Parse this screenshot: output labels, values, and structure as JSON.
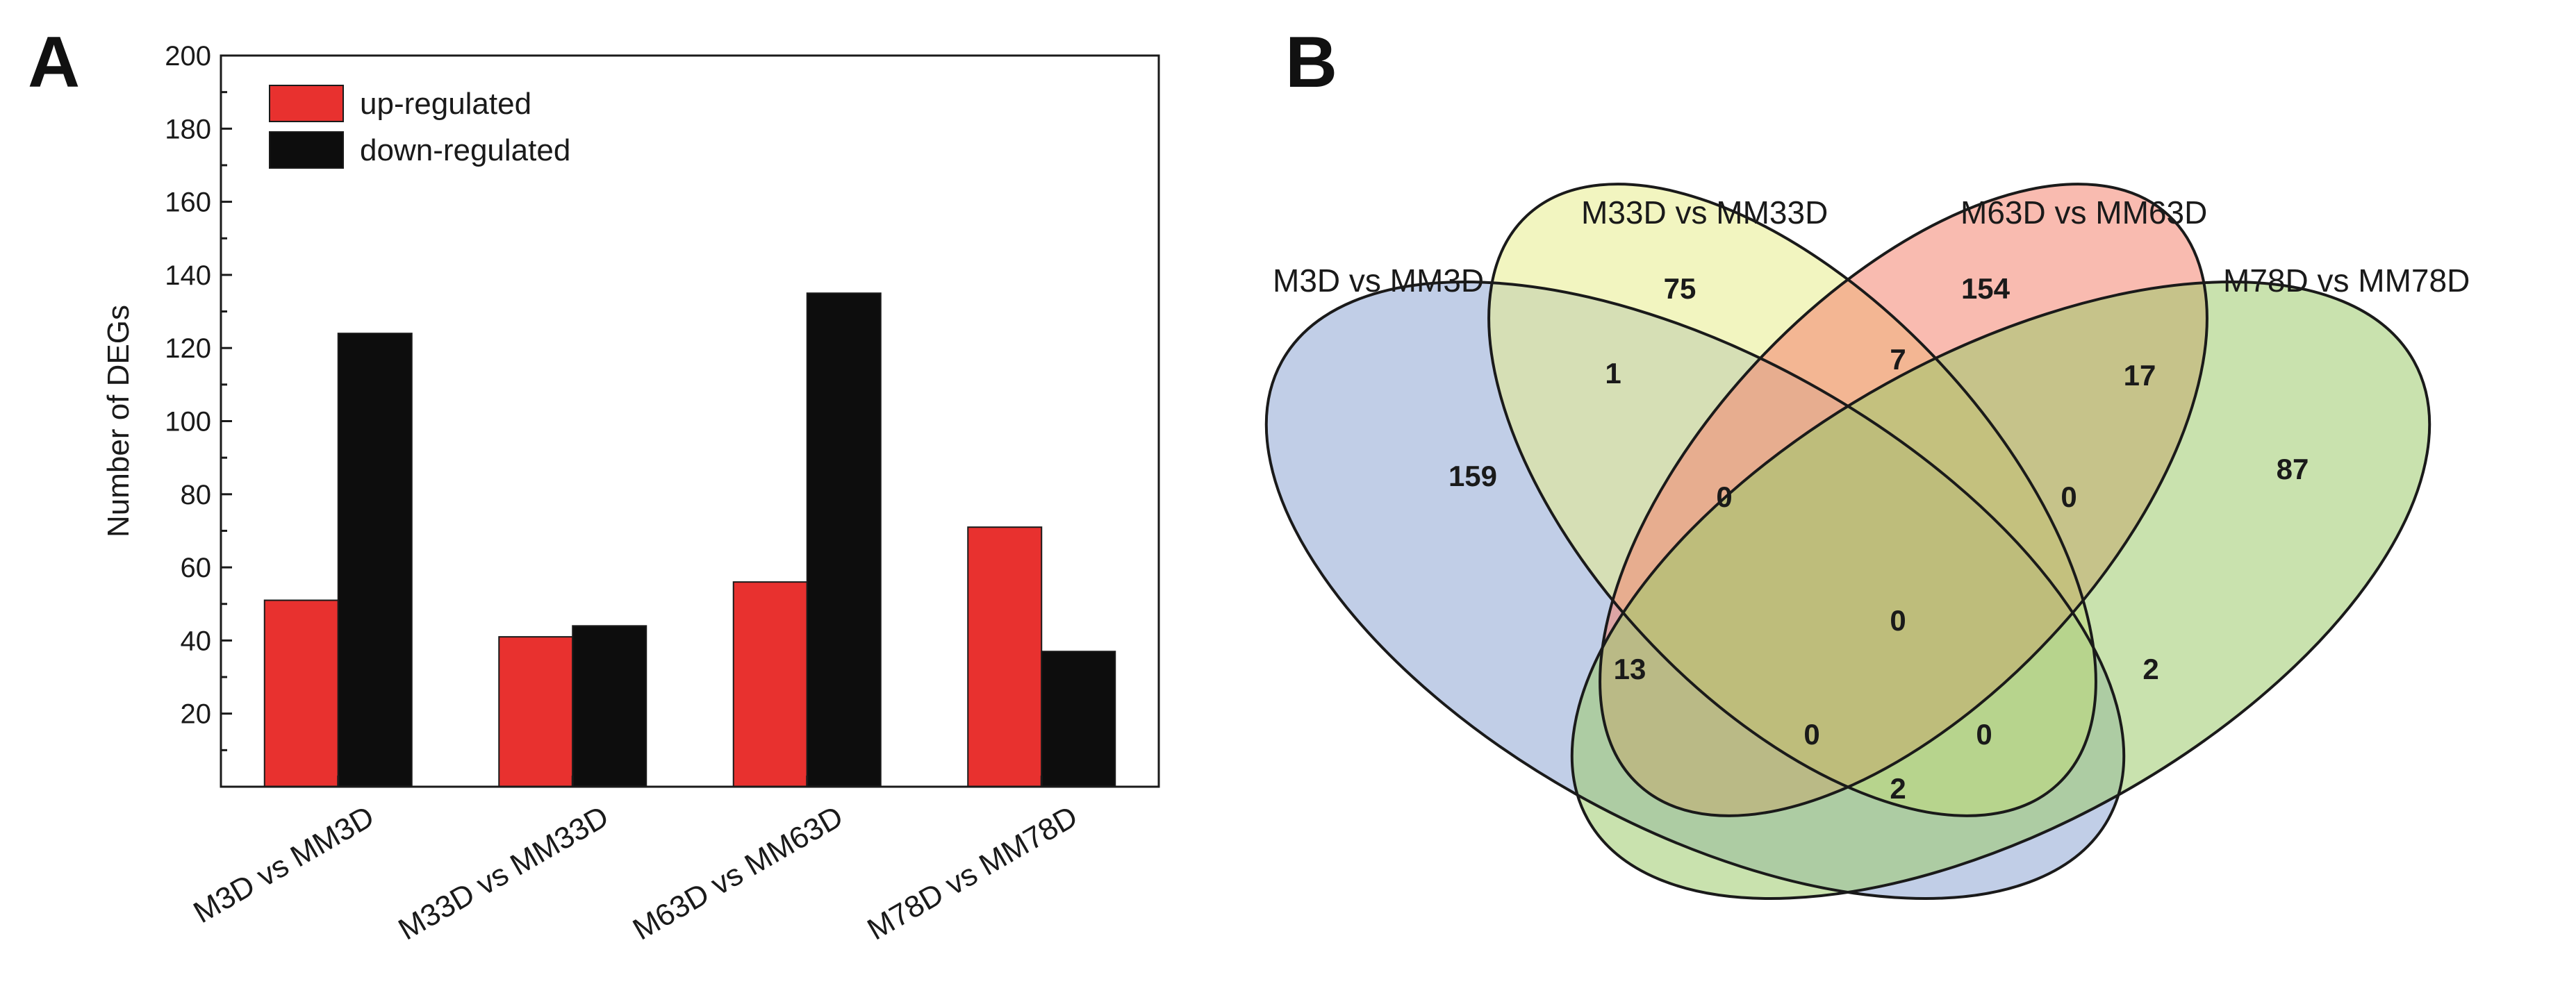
{
  "panels": {
    "a": {
      "label": "A"
    },
    "b": {
      "label": "B"
    }
  },
  "colors": {
    "up": "#e8312f",
    "down": "#0d0d0d",
    "venn": [
      "#8ea5d4",
      "#e8ec8c",
      "#f4836f",
      "#9cca6c"
    ]
  },
  "chart_data": [
    {
      "type": "bar",
      "title": "",
      "xlabel": "",
      "ylabel": "Number of DEGs",
      "ylim": [
        0,
        200
      ],
      "yticks": [
        "20",
        "40",
        "60",
        "80",
        "100",
        "120",
        "140",
        "160",
        "180",
        "200"
      ],
      "legend_position": "top-left",
      "categories": [
        "M3D vs MM3D",
        "M33D vs MM33D",
        "M63D vs MM63D",
        "M78D vs MM78D"
      ],
      "series": [
        {
          "name": "up-regulated",
          "values": [
            51,
            41,
            56,
            71
          ]
        },
        {
          "name": "down-regulated",
          "values": [
            124,
            44,
            135,
            37
          ]
        }
      ]
    },
    {
      "type": "venn",
      "sets": [
        "M3D vs MM3D",
        "M33D vs MM33D",
        "M63D vs MM63D",
        "M78D vs MM78D"
      ],
      "regions": [
        {
          "sets": [
            "M3D vs MM3D"
          ],
          "count": "159"
        },
        {
          "sets": [
            "M33D vs MM33D"
          ],
          "count": "75"
        },
        {
          "sets": [
            "M63D vs MM63D"
          ],
          "count": "154"
        },
        {
          "sets": [
            "M78D vs MM78D"
          ],
          "count": "87"
        },
        {
          "sets": [
            "M3D vs MM3D",
            "M33D vs MM33D"
          ],
          "count": "1"
        },
        {
          "sets": [
            "M33D vs MM33D",
            "M63D vs MM63D"
          ],
          "count": "7"
        },
        {
          "sets": [
            "M63D vs MM63D",
            "M78D vs MM78D"
          ],
          "count": "17"
        },
        {
          "sets": [
            "M3D vs MM3D",
            "M33D vs MM33D",
            "M63D vs MM63D"
          ],
          "count": "0"
        },
        {
          "sets": [
            "M33D vs MM33D",
            "M63D vs MM63D",
            "M78D vs MM78D"
          ],
          "count": "0"
        },
        {
          "sets": [
            "M3D vs MM3D",
            "M33D vs MM33D",
            "M63D vs MM63D",
            "M78D vs MM78D"
          ],
          "count": "0"
        },
        {
          "sets": [
            "M3D vs MM3D",
            "M63D vs MM63D"
          ],
          "count": "13"
        },
        {
          "sets": [
            "M33D vs MM33D",
            "M78D vs MM78D"
          ],
          "count": "2"
        },
        {
          "sets": [
            "M3D vs MM3D",
            "M63D vs MM63D",
            "M78D vs MM78D"
          ],
          "count": "0"
        },
        {
          "sets": [
            "M3D vs MM3D",
            "M33D vs MM33D",
            "M78D vs MM78D"
          ],
          "count": "0"
        },
        {
          "sets": [
            "M3D vs MM3D",
            "M78D vs MM78D"
          ],
          "count": "2"
        }
      ]
    }
  ]
}
